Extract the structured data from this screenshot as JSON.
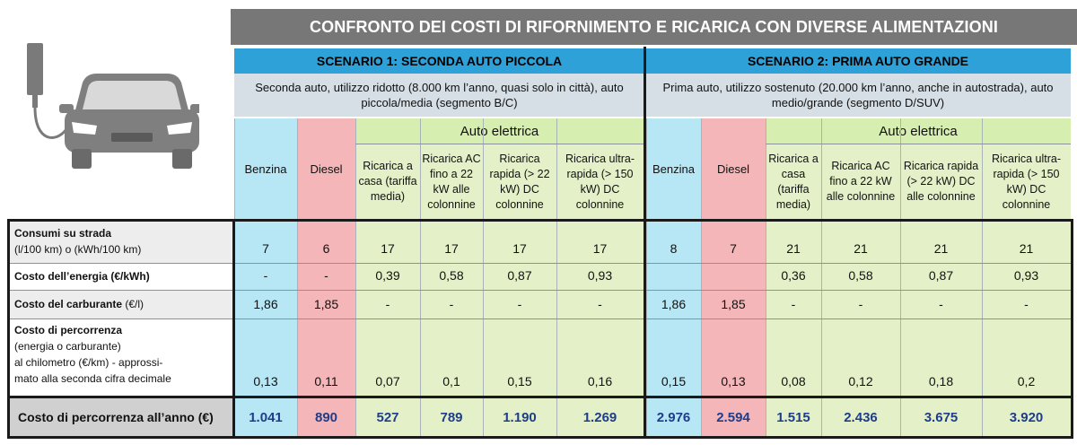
{
  "title": "CONFRONTO DEI COSTI DI RIFORNIMENTO E RICARICA CON DIVERSE ALIMENTAZIONI",
  "scenario1": {
    "title": "SCENARIO 1: SECONDA AUTO PICCOLA",
    "description": "Seconda auto, utilizzo ridotto (8.000 km l’anno, quasi solo in città), auto piccola/media (segmento B/C)"
  },
  "scenario2": {
    "title": "SCENARIO 2: PRIMA AUTO GRANDE",
    "description": "Prima auto, utilizzo sostenuto (20.000 km l’anno, anche in autostrada), auto medio/grande (segmento D/SUV)"
  },
  "headers": {
    "benzina": "Benzina",
    "diesel": "Diesel",
    "auto_elettrica": "Auto elettrica",
    "s1_elec": [
      "Ricarica a casa (tariffa media)",
      "Ricarica AC fino a 22 kW alle colonnine",
      "Ricarica rapida (> 22 kW) DC colonnine",
      "Ricarica ultra-rapida (> 150 kW) DC colonnine"
    ],
    "s2_elec": [
      "Ricarica a casa (tariffa media)",
      "Ricarica AC fino a 22 kW alle colonnine",
      "Ricarica rapida (> 22 kW) DC alle colonnine",
      "Ricarica ultra-rapida (> 150 kW) DC colonnine"
    ]
  },
  "rows": {
    "consumi": {
      "label_bold": "Consumi su strada",
      "label_rest": "(l/100 km) o (kWh/100 km)",
      "values": [
        "7",
        "6",
        "17",
        "17",
        "17",
        "17",
        "8",
        "7",
        "21",
        "21",
        "21",
        "21"
      ]
    },
    "costo_energia": {
      "label_bold": "Costo dell’energia (€/kWh)",
      "values": [
        "-",
        "-",
        "0,39",
        "0,58",
        "0,87",
        "0,93",
        "",
        "",
        "0,36",
        "0,58",
        "0,87",
        "0,93"
      ]
    },
    "costo_carburante": {
      "label_bold": "Costo del carburante",
      "label_rest": " (€/l)",
      "values": [
        "1,86",
        "1,85",
        "-",
        "-",
        "-",
        "-",
        "1,86",
        "1,85",
        "-",
        "-",
        "-",
        "-"
      ]
    },
    "costo_percorrenza": {
      "label_bold": "Costo di percorrenza",
      "label_lines": [
        "(energia o carburante)",
        "al chilometro (€/km) - approssi-",
        "mato alla seconda cifra decimale"
      ],
      "values": [
        "0,13",
        "0,11",
        "0,07",
        "0,1",
        "0,15",
        "0,16",
        "0,15",
        "0,13",
        "0,08",
        "0,12",
        "0,18",
        "0,2"
      ]
    },
    "totale": {
      "label": "Costo di percorrenza all’anno (€)",
      "values": [
        "1.041",
        "890",
        "527",
        "789",
        "1.190",
        "1.269",
        "2.976",
        "2.594",
        "1.515",
        "2.436",
        "3.675",
        "3.920"
      ]
    }
  },
  "colors": {
    "title_bg": "#777777",
    "scenario_title_bg": "#2ea1d8",
    "benzina": "#b7e6f5",
    "diesel": "#f4b6b8",
    "elettrica": "#e4f1c8",
    "total_value": "#1f3d8a"
  },
  "icon": "electric-car-charger-icon"
}
